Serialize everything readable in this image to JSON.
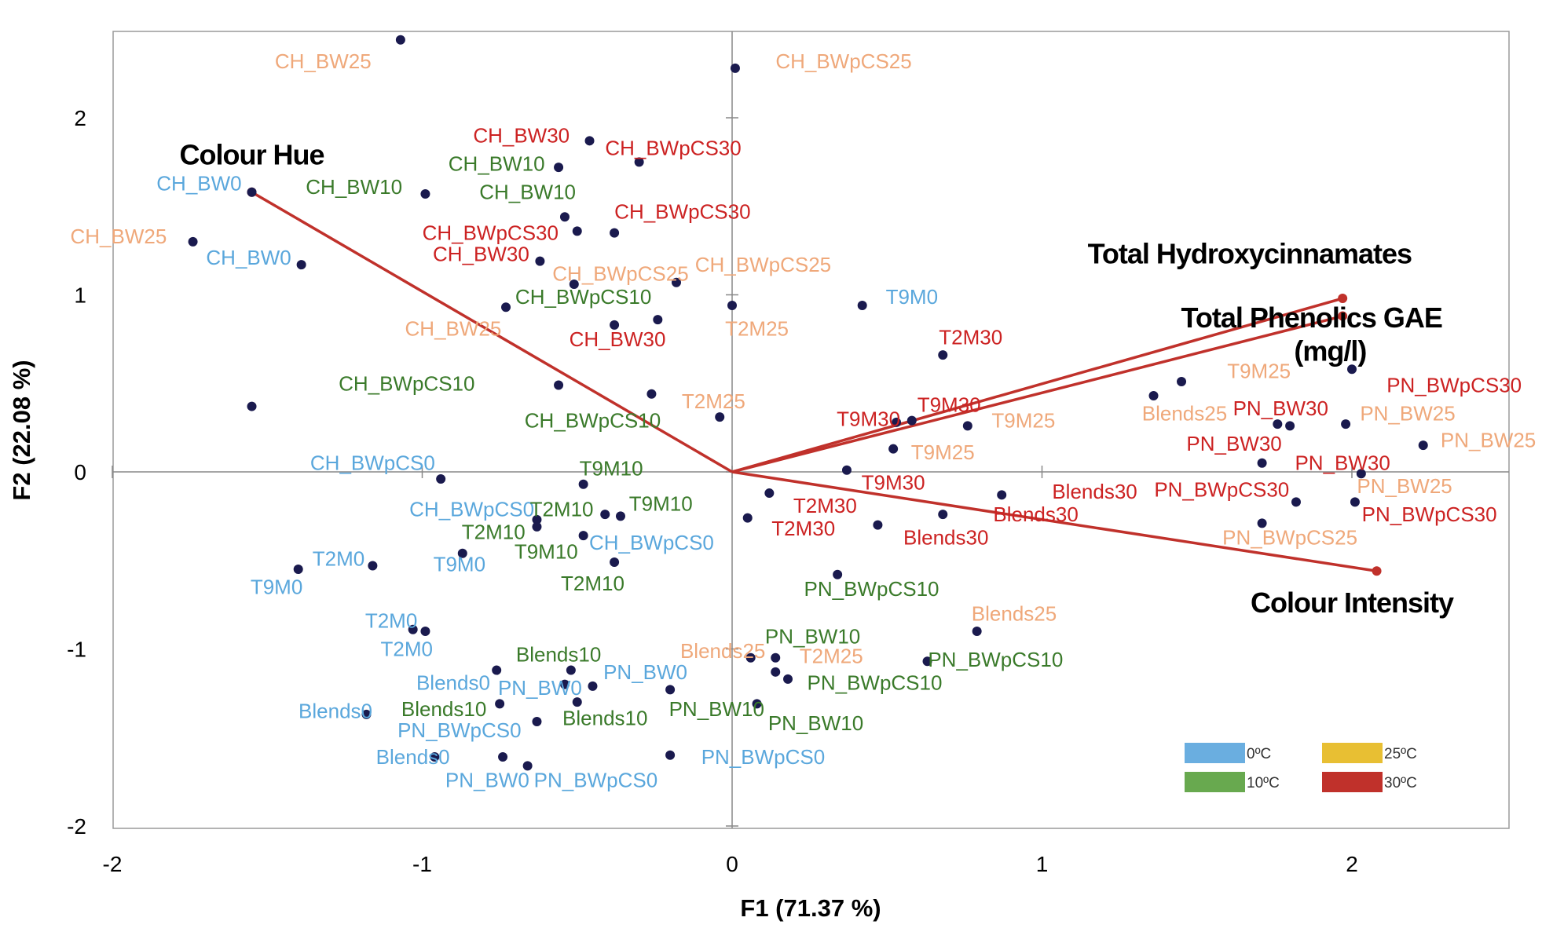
{
  "chart_data": {
    "type": "scatter",
    "xlabel": "F1 (71.37 %)",
    "ylabel": "F2 (22.08 %)",
    "xlim": [
      -2,
      2.5
    ],
    "ylim": [
      -2,
      2.5
    ],
    "x_ticks": [
      -2,
      -1,
      0,
      1,
      2
    ],
    "y_ticks": [
      -2,
      -1,
      0,
      1,
      2
    ],
    "grid": false,
    "legend_position": "bottom-right",
    "legend": [
      {
        "name": "0ºC",
        "color": "#6aaee0"
      },
      {
        "name": "25ºC",
        "color": "#e8bf33"
      },
      {
        "name": "10ºC",
        "color": "#68a94f"
      },
      {
        "name": "30ºC",
        "color": "#c0312b"
      }
    ],
    "colors": {
      "0": "#5aa7dc",
      "10": "#3a7a2a",
      "25": "#efa87a",
      "30": "#cc2222",
      "point": "#1a1a4e",
      "vector": "#c0312b"
    },
    "variables": [
      {
        "name": "Colour Hue",
        "x": -1.55,
        "y": 1.58
      },
      {
        "name": "Total Hydroxycinnamates",
        "x": 1.97,
        "y": 0.98
      },
      {
        "name": "Total Phenolics GAE (mg/l)",
        "x": 1.97,
        "y": 0.88
      },
      {
        "name": "Colour Intensity",
        "x": 2.08,
        "y": -0.56
      }
    ],
    "variable_labels": [
      "Colour Hue",
      "Total Hydroxycinnamates",
      "Total Phenolics GAE",
      "(mg/l)",
      "Colour Intensity"
    ],
    "points": [
      {
        "x": -1.07,
        "y": 2.44
      },
      {
        "x": 0.01,
        "y": 2.28
      },
      {
        "x": -0.46,
        "y": 1.87
      },
      {
        "x": -0.3,
        "y": 1.75
      },
      {
        "x": -0.56,
        "y": 1.72
      },
      {
        "x": -0.99,
        "y": 1.57
      },
      {
        "x": -1.55,
        "y": 1.58
      },
      {
        "x": -0.54,
        "y": 1.44
      },
      {
        "x": -0.5,
        "y": 1.36
      },
      {
        "x": -0.38,
        "y": 1.35
      },
      {
        "x": -1.74,
        "y": 1.3
      },
      {
        "x": -1.39,
        "y": 1.17
      },
      {
        "x": -0.62,
        "y": 1.19
      },
      {
        "x": -0.51,
        "y": 1.06
      },
      {
        "x": -0.18,
        "y": 1.07
      },
      {
        "x": -0.73,
        "y": 0.93
      },
      {
        "x": 0.0,
        "y": 0.94
      },
      {
        "x": 0.42,
        "y": 0.94
      },
      {
        "x": -0.38,
        "y": 0.83
      },
      {
        "x": -0.24,
        "y": 0.86
      },
      {
        "x": 0.68,
        "y": 0.66
      },
      {
        "x": 1.45,
        "y": 0.51
      },
      {
        "x": 2.0,
        "y": 0.58
      },
      {
        "x": -0.56,
        "y": 0.49
      },
      {
        "x": -0.26,
        "y": 0.44
      },
      {
        "x": 1.36,
        "y": 0.43
      },
      {
        "x": -1.55,
        "y": 0.37
      },
      {
        "x": -0.04,
        "y": 0.31
      },
      {
        "x": 0.58,
        "y": 0.29
      },
      {
        "x": 0.53,
        "y": 0.28
      },
      {
        "x": 0.76,
        "y": 0.26
      },
      {
        "x": 1.76,
        "y": 0.27
      },
      {
        "x": 1.8,
        "y": 0.26
      },
      {
        "x": 1.98,
        "y": 0.27
      },
      {
        "x": 0.52,
        "y": 0.13
      },
      {
        "x": 2.23,
        "y": 0.15
      },
      {
        "x": 1.71,
        "y": 0.05
      },
      {
        "x": 0.37,
        "y": 0.01
      },
      {
        "x": 2.03,
        "y": -0.01
      },
      {
        "x": -0.94,
        "y": -0.04
      },
      {
        "x": -0.48,
        "y": -0.07
      },
      {
        "x": 0.12,
        "y": -0.12
      },
      {
        "x": 0.87,
        "y": -0.13
      },
      {
        "x": 1.82,
        "y": -0.17
      },
      {
        "x": 2.01,
        "y": -0.17
      },
      {
        "x": -0.41,
        "y": -0.24
      },
      {
        "x": -0.36,
        "y": -0.25
      },
      {
        "x": 0.68,
        "y": -0.24
      },
      {
        "x": 0.05,
        "y": -0.26
      },
      {
        "x": -0.63,
        "y": -0.27
      },
      {
        "x": 1.71,
        "y": -0.29
      },
      {
        "x": -0.63,
        "y": -0.31
      },
      {
        "x": 0.47,
        "y": -0.3
      },
      {
        "x": -0.48,
        "y": -0.36
      },
      {
        "x": -0.87,
        "y": -0.46
      },
      {
        "x": -0.38,
        "y": -0.51
      },
      {
        "x": -1.16,
        "y": -0.53
      },
      {
        "x": -1.4,
        "y": -0.55
      },
      {
        "x": 0.34,
        "y": -0.58
      },
      {
        "x": -1.03,
        "y": -0.89
      },
      {
        "x": -0.99,
        "y": -0.9
      },
      {
        "x": 0.79,
        "y": -0.9
      },
      {
        "x": 0.06,
        "y": -1.05
      },
      {
        "x": 0.14,
        "y": -1.05
      },
      {
        "x": 0.63,
        "y": -1.07
      },
      {
        "x": -0.76,
        "y": -1.12
      },
      {
        "x": -0.52,
        "y": -1.12
      },
      {
        "x": 0.14,
        "y": -1.13
      },
      {
        "x": 0.18,
        "y": -1.17
      },
      {
        "x": -0.54,
        "y": -1.2
      },
      {
        "x": -0.45,
        "y": -1.21
      },
      {
        "x": -0.2,
        "y": -1.23
      },
      {
        "x": -0.75,
        "y": -1.31
      },
      {
        "x": -0.5,
        "y": -1.3
      },
      {
        "x": 0.08,
        "y": -1.31
      },
      {
        "x": -1.18,
        "y": -1.37
      },
      {
        "x": -0.63,
        "y": -1.41
      },
      {
        "x": -0.96,
        "y": -1.61
      },
      {
        "x": -0.74,
        "y": -1.61
      },
      {
        "x": -0.2,
        "y": -1.6
      },
      {
        "x": -0.66,
        "y": -1.66
      }
    ],
    "labels": [
      {
        "text": "CH_BW25",
        "x": -1.32,
        "y": 2.32,
        "temp": "25"
      },
      {
        "text": "CH_BWpCS25",
        "x": 0.36,
        "y": 2.32,
        "temp": "25"
      },
      {
        "text": "CH_BW30",
        "x": -0.68,
        "y": 1.9,
        "temp": "30"
      },
      {
        "text": "Colour Hue",
        "x": -1.55,
        "y": 1.79,
        "temp": "var"
      },
      {
        "text": "CH_BWpCS30",
        "x": -0.19,
        "y": 1.83,
        "temp": "30"
      },
      {
        "text": "CH_BW10",
        "x": -0.76,
        "y": 1.74,
        "temp": "10"
      },
      {
        "text": "CH_BW0",
        "x": -1.72,
        "y": 1.63,
        "temp": "0"
      },
      {
        "text": "CH_BW10",
        "x": -1.22,
        "y": 1.61,
        "temp": "10"
      },
      {
        "text": "CH_BW10",
        "x": -0.66,
        "y": 1.58,
        "temp": "10"
      },
      {
        "text": "CH_BWpCS30",
        "x": -0.16,
        "y": 1.47,
        "temp": "30"
      },
      {
        "text": "CH_BW25",
        "x": -1.98,
        "y": 1.33,
        "temp": "25"
      },
      {
        "text": "CH_BWpCS30",
        "x": -0.78,
        "y": 1.35,
        "temp": "30"
      },
      {
        "text": "CH_BW0",
        "x": -1.56,
        "y": 1.21,
        "temp": "0"
      },
      {
        "text": "CH_BW30",
        "x": -0.81,
        "y": 1.23,
        "temp": "30"
      },
      {
        "text": "CH_BWpCS25",
        "x": -0.36,
        "y": 1.12,
        "temp": "25"
      },
      {
        "text": "CH_BWpCS25",
        "x": 0.1,
        "y": 1.17,
        "temp": "25"
      },
      {
        "text": "Total Hydroxycinnamates",
        "x": 1.67,
        "y": 1.23,
        "temp": "var"
      },
      {
        "text": "CH_BWpCS10",
        "x": -0.48,
        "y": 0.99,
        "temp": "10"
      },
      {
        "text": "T9M0",
        "x": 0.58,
        "y": 0.99,
        "temp": "0"
      },
      {
        "text": "Total Phenolics GAE",
        "x": 1.87,
        "y": 0.87,
        "temp": "var"
      },
      {
        "text": "CH_BW25",
        "x": -0.9,
        "y": 0.81,
        "temp": "25"
      },
      {
        "text": "T2M25",
        "x": 0.08,
        "y": 0.81,
        "temp": "25"
      },
      {
        "text": "CH_BW30",
        "x": -0.37,
        "y": 0.75,
        "temp": "30"
      },
      {
        "text": "(mg/l)",
        "x": 1.93,
        "y": 0.68,
        "temp": "var"
      },
      {
        "text": "T2M30",
        "x": 0.77,
        "y": 0.76,
        "temp": "30"
      },
      {
        "text": "T9M25",
        "x": 1.7,
        "y": 0.57,
        "temp": "25"
      },
      {
        "text": "PN_BWpCS30",
        "x": 2.33,
        "y": 0.49,
        "temp": "30"
      },
      {
        "text": "CH_BWpCS10",
        "x": -1.05,
        "y": 0.5,
        "temp": "10"
      },
      {
        "text": "T2M25",
        "x": -0.06,
        "y": 0.4,
        "temp": "25"
      },
      {
        "text": "T9M30",
        "x": 0.7,
        "y": 0.38,
        "temp": "30"
      },
      {
        "text": "PN_BW30",
        "x": 1.77,
        "y": 0.36,
        "temp": "30"
      },
      {
        "text": "Blends25",
        "x": 1.46,
        "y": 0.33,
        "temp": "25"
      },
      {
        "text": "PN_BW25",
        "x": 2.18,
        "y": 0.33,
        "temp": "25"
      },
      {
        "text": "T9M30",
        "x": 0.44,
        "y": 0.3,
        "temp": "30"
      },
      {
        "text": "T9M25",
        "x": 0.94,
        "y": 0.29,
        "temp": "25"
      },
      {
        "text": "CH_BWpCS10",
        "x": -0.45,
        "y": 0.29,
        "temp": "10"
      },
      {
        "text": "PN_BW30",
        "x": 1.62,
        "y": 0.16,
        "temp": "30"
      },
      {
        "text": "PN_BW25",
        "x": 2.44,
        "y": 0.18,
        "temp": "25"
      },
      {
        "text": "T9M25",
        "x": 0.68,
        "y": 0.11,
        "temp": "25"
      },
      {
        "text": "CH_BWpCS0",
        "x": -1.16,
        "y": 0.05,
        "temp": "0"
      },
      {
        "text": "PN_BW30",
        "x": 1.97,
        "y": 0.05,
        "temp": "30"
      },
      {
        "text": "T9M10",
        "x": -0.39,
        "y": 0.02,
        "temp": "10"
      },
      {
        "text": "T9M30",
        "x": 0.52,
        "y": -0.06,
        "temp": "30"
      },
      {
        "text": "Blends30",
        "x": 1.17,
        "y": -0.11,
        "temp": "30"
      },
      {
        "text": "PN_BWpCS30",
        "x": 1.58,
        "y": -0.1,
        "temp": "30"
      },
      {
        "text": "PN_BW25",
        "x": 2.17,
        "y": -0.08,
        "temp": "25"
      },
      {
        "text": "CH_BWpCS0",
        "x": -0.84,
        "y": -0.21,
        "temp": "0"
      },
      {
        "text": "T2M10",
        "x": -0.55,
        "y": -0.21,
        "temp": "10"
      },
      {
        "text": "T9M10",
        "x": -0.23,
        "y": -0.18,
        "temp": "10"
      },
      {
        "text": "T2M30",
        "x": 0.3,
        "y": -0.19,
        "temp": "30"
      },
      {
        "text": "Blends30",
        "x": 0.98,
        "y": -0.24,
        "temp": "30"
      },
      {
        "text": "PN_BWpCS30",
        "x": 2.25,
        "y": -0.24,
        "temp": "30"
      },
      {
        "text": "T2M10",
        "x": -0.77,
        "y": -0.34,
        "temp": "10"
      },
      {
        "text": "T2M30",
        "x": 0.23,
        "y": -0.32,
        "temp": "30"
      },
      {
        "text": "Blends30",
        "x": 0.69,
        "y": -0.37,
        "temp": "30"
      },
      {
        "text": "CH_BWpCS0",
        "x": -0.26,
        "y": -0.4,
        "temp": "0"
      },
      {
        "text": "PN_BWpCS25",
        "x": 1.8,
        "y": -0.37,
        "temp": "25"
      },
      {
        "text": "T9M10",
        "x": -0.6,
        "y": -0.45,
        "temp": "10"
      },
      {
        "text": "T2M0",
        "x": -1.27,
        "y": -0.49,
        "temp": "0"
      },
      {
        "text": "T9M0",
        "x": -0.88,
        "y": -0.52,
        "temp": "0"
      },
      {
        "text": "Colour Intensity",
        "x": 2.0,
        "y": -0.74,
        "temp": "var"
      },
      {
        "text": "T2M10",
        "x": -0.45,
        "y": -0.63,
        "temp": "10"
      },
      {
        "text": "T9M0",
        "x": -1.47,
        "y": -0.65,
        "temp": "0"
      },
      {
        "text": "PN_BWpCS10",
        "x": 0.45,
        "y": -0.66,
        "temp": "10"
      },
      {
        "text": "T2M0",
        "x": -1.1,
        "y": -0.84,
        "temp": "0"
      },
      {
        "text": "Blends25",
        "x": 0.91,
        "y": -0.8,
        "temp": "25"
      },
      {
        "text": "T2M0",
        "x": -1.05,
        "y": -1.0,
        "temp": "0"
      },
      {
        "text": "PN_BW10",
        "x": 0.26,
        "y": -0.93,
        "temp": "10"
      },
      {
        "text": "Blends10",
        "x": -0.56,
        "y": -1.03,
        "temp": "10"
      },
      {
        "text": "Blends25",
        "x": -0.03,
        "y": -1.01,
        "temp": "25"
      },
      {
        "text": "T2M25",
        "x": 0.32,
        "y": -1.04,
        "temp": "25"
      },
      {
        "text": "PN_BWpCS10",
        "x": 0.85,
        "y": -1.06,
        "temp": "10"
      },
      {
        "text": "PN_BW0",
        "x": -0.28,
        "y": -1.13,
        "temp": "0"
      },
      {
        "text": "Blends0",
        "x": -0.9,
        "y": -1.19,
        "temp": "0"
      },
      {
        "text": "PN_BW0",
        "x": -0.62,
        "y": -1.22,
        "temp": "0"
      },
      {
        "text": "PN_BWpCS10",
        "x": 0.46,
        "y": -1.19,
        "temp": "10"
      },
      {
        "text": "Blends0",
        "x": -1.28,
        "y": -1.35,
        "temp": "0"
      },
      {
        "text": "Blends10",
        "x": -0.93,
        "y": -1.34,
        "temp": "10"
      },
      {
        "text": "PN_BW10",
        "x": -0.05,
        "y": -1.34,
        "temp": "10"
      },
      {
        "text": "Blends10",
        "x": -0.41,
        "y": -1.39,
        "temp": "10"
      },
      {
        "text": "PN_BW10",
        "x": 0.27,
        "y": -1.42,
        "temp": "10"
      },
      {
        "text": "PN_BWpCS0",
        "x": -0.88,
        "y": -1.46,
        "temp": "0"
      },
      {
        "text": "PN_BWpCS0",
        "x": 0.1,
        "y": -1.61,
        "temp": "0"
      },
      {
        "text": "Blends0",
        "x": -1.03,
        "y": -1.61,
        "temp": "0"
      },
      {
        "text": "PN_BW0",
        "x": -0.79,
        "y": -1.74,
        "temp": "0"
      },
      {
        "text": "PN_BWpCS0",
        "x": -0.44,
        "y": -1.74,
        "temp": "0"
      }
    ]
  }
}
